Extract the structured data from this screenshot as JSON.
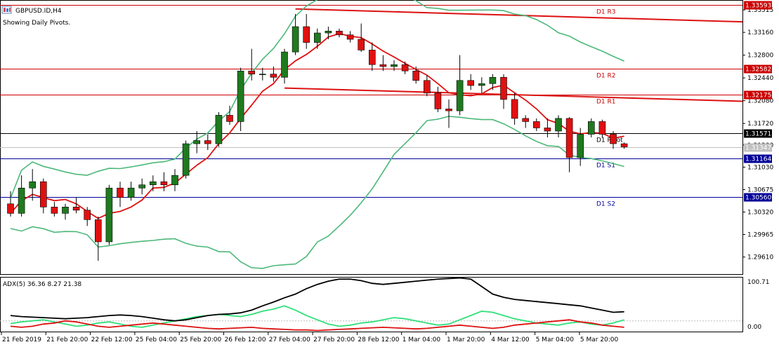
{
  "header": {
    "symbol": "GBPUSD.ID,H4",
    "subtitle": "Showing Daily Pivots."
  },
  "indicator": {
    "label": "ADX(5) 36.36 8.27 21.38",
    "scale_top": "100.71",
    "scale_bottom": "0.00"
  },
  "colors": {
    "bull": "#1f7a1f",
    "bear": "#e01010",
    "ma": "#dd1111",
    "bands": "#4cb87a",
    "channel": "#dd1111",
    "resistance": "#cc0000",
    "pivot": "#000000",
    "support": "#000099",
    "adx_main": "#000000",
    "adx_plus": "#2ee07a",
    "adx_minus": "#dd1111"
  },
  "chart_data": {
    "type": "candlestick",
    "price_axis_ticks": [
      "1.33515",
      "1.33160",
      "1.32800",
      "1.32440",
      "1.32080",
      "1.31720",
      "1.31380",
      "1.31030",
      "1.30675",
      "1.30320",
      "1.29965",
      "1.29610"
    ],
    "time_axis_labels": [
      "21 Feb 2019",
      "21 Feb 20:00",
      "22 Feb 12:00",
      "25 Feb 04:00",
      "25 Feb 20:00",
      "26 Feb 12:00",
      "27 Feb 04:00",
      "27 Feb 20:00",
      "28 Feb 12:00",
      "1 Mar 04:00",
      "1 Mar 20:00",
      "4 Mar 12:00",
      "5 Mar 04:00",
      "5 Mar 20:00"
    ],
    "pivots": [
      {
        "name": "D1 R3",
        "price": 1.33593,
        "tag": "1.33593",
        "kind": "resistance"
      },
      {
        "name": "D1 R2",
        "price": 1.32582,
        "tag": "1.32582",
        "kind": "resistance"
      },
      {
        "name": "D1 R1",
        "price": 1.32175,
        "tag": "1.32175",
        "kind": "resistance"
      },
      {
        "name": "D1 Pivot",
        "price": 1.31571,
        "tag": "1.31571",
        "kind": "pivot"
      },
      {
        "name": "D1 S1",
        "price": 1.31164,
        "tag": "1.31164",
        "kind": "support"
      },
      {
        "name": "D1 S2",
        "price": 1.3056,
        "tag": "1.30560",
        "kind": "support"
      }
    ],
    "current_price": {
      "price": 1.31347,
      "tag": "1.31347"
    },
    "ylim": [
      1.2934,
      1.3366
    ],
    "candles": [
      [
        1.3045,
        1.3065,
        1.3025,
        1.303
      ],
      [
        1.303,
        1.309,
        1.3025,
        1.307
      ],
      [
        1.307,
        1.31,
        1.305,
        1.308
      ],
      [
        1.308,
        1.3085,
        1.303,
        1.304
      ],
      [
        1.304,
        1.3048,
        1.3025,
        1.303
      ],
      [
        1.303,
        1.3045,
        1.302,
        1.304
      ],
      [
        1.304,
        1.3055,
        1.303,
        1.3035
      ],
      [
        1.3035,
        1.304,
        1.301,
        1.302
      ],
      [
        1.302,
        1.3025,
        1.2955,
        1.2985
      ],
      [
        1.2985,
        1.3075,
        1.298,
        1.307
      ],
      [
        1.307,
        1.308,
        1.304,
        1.3055
      ],
      [
        1.3055,
        1.308,
        1.305,
        1.307
      ],
      [
        1.307,
        1.3085,
        1.306,
        1.3075
      ],
      [
        1.3075,
        1.309,
        1.3065,
        1.308
      ],
      [
        1.308,
        1.3095,
        1.3065,
        1.3075
      ],
      [
        1.3075,
        1.31,
        1.3065,
        1.309
      ],
      [
        1.309,
        1.3145,
        1.3085,
        1.314
      ],
      [
        1.314,
        1.316,
        1.3125,
        1.3145
      ],
      [
        1.3145,
        1.3155,
        1.313,
        1.314
      ],
      [
        1.314,
        1.319,
        1.3135,
        1.3185
      ],
      [
        1.3185,
        1.32,
        1.317,
        1.3175
      ],
      [
        1.3175,
        1.326,
        1.316,
        1.3255
      ],
      [
        1.3255,
        1.329,
        1.324,
        1.325
      ],
      [
        1.325,
        1.326,
        1.324,
        1.325
      ],
      [
        1.325,
        1.3262,
        1.3238,
        1.3245
      ],
      [
        1.3245,
        1.329,
        1.3235,
        1.3285
      ],
      [
        1.3285,
        1.3345,
        1.328,
        1.3325
      ],
      [
        1.3325,
        1.3345,
        1.329,
        1.33
      ],
      [
        1.33,
        1.3322,
        1.329,
        1.3315
      ],
      [
        1.3315,
        1.3325,
        1.3305,
        1.3318
      ],
      [
        1.3318,
        1.3322,
        1.3308,
        1.3312
      ],
      [
        1.3312,
        1.3318,
        1.33,
        1.3305
      ],
      [
        1.3305,
        1.333,
        1.3285,
        1.3288
      ],
      [
        1.3288,
        1.33,
        1.3255,
        1.3265
      ],
      [
        1.3265,
        1.328,
        1.3255,
        1.3262
      ],
      [
        1.3262,
        1.3272,
        1.3255,
        1.3265
      ],
      [
        1.3265,
        1.327,
        1.325,
        1.3255
      ],
      [
        1.3255,
        1.3262,
        1.3235,
        1.324
      ],
      [
        1.324,
        1.3248,
        1.3215,
        1.322
      ],
      [
        1.322,
        1.323,
        1.319,
        1.3195
      ],
      [
        1.3195,
        1.321,
        1.3165,
        1.3192
      ],
      [
        1.3192,
        1.328,
        1.3185,
        1.324
      ],
      [
        1.324,
        1.325,
        1.3225,
        1.3232
      ],
      [
        1.3232,
        1.3245,
        1.322,
        1.3235
      ],
      [
        1.3235,
        1.325,
        1.3225,
        1.3245
      ],
      [
        1.3245,
        1.325,
        1.3195,
        1.321
      ],
      [
        1.321,
        1.322,
        1.317,
        1.318
      ],
      [
        1.318,
        1.3185,
        1.3165,
        1.3175
      ],
      [
        1.3175,
        1.318,
        1.316,
        1.3165
      ],
      [
        1.3165,
        1.318,
        1.315,
        1.316
      ],
      [
        1.316,
        1.3185,
        1.315,
        1.318
      ],
      [
        1.318,
        1.3182,
        1.3095,
        1.3118
      ],
      [
        1.3118,
        1.3165,
        1.3105,
        1.3155
      ],
      [
        1.3155,
        1.318,
        1.315,
        1.3175
      ],
      [
        1.3175,
        1.3178,
        1.315,
        1.3155
      ],
      [
        1.3155,
        1.316,
        1.3132,
        1.314
      ],
      [
        1.314,
        1.3142,
        1.3132,
        1.3135
      ]
    ],
    "adx": {
      "adx_main": [
        30,
        28,
        27,
        26,
        25,
        24,
        25,
        26,
        28,
        30,
        31,
        30,
        28,
        25,
        22,
        20,
        22,
        26,
        30,
        32,
        33,
        35,
        40,
        48,
        55,
        63,
        70,
        80,
        88,
        94,
        98,
        98,
        95,
        90,
        88,
        90,
        92,
        94,
        96,
        98,
        99,
        100,
        98,
        84,
        70,
        64,
        60,
        58,
        56,
        54,
        52,
        50,
        48,
        44,
        40,
        36,
        37
      ],
      "adx_plus": [
        15,
        18,
        20,
        22,
        18,
        14,
        10,
        12,
        16,
        18,
        14,
        10,
        8,
        12,
        16,
        20,
        24,
        28,
        30,
        32,
        30,
        28,
        32,
        38,
        42,
        48,
        40,
        30,
        22,
        14,
        10,
        12,
        16,
        18,
        22,
        26,
        24,
        20,
        16,
        12,
        14,
        22,
        30,
        38,
        36,
        30,
        24,
        20,
        16,
        14,
        12,
        16,
        18,
        14,
        12,
        16,
        22
      ],
      "adx_minus": [
        10,
        8,
        10,
        14,
        16,
        20,
        18,
        14,
        10,
        8,
        10,
        12,
        14,
        16,
        14,
        12,
        10,
        8,
        6,
        5,
        6,
        7,
        8,
        6,
        5,
        4,
        3,
        3,
        2,
        3,
        4,
        5,
        6,
        7,
        8,
        7,
        6,
        5,
        6,
        8,
        10,
        12,
        10,
        8,
        6,
        8,
        12,
        14,
        16,
        18,
        20,
        22,
        18,
        16,
        12,
        10,
        8
      ],
      "ylim": [
        0,
        100.71
      ]
    }
  }
}
